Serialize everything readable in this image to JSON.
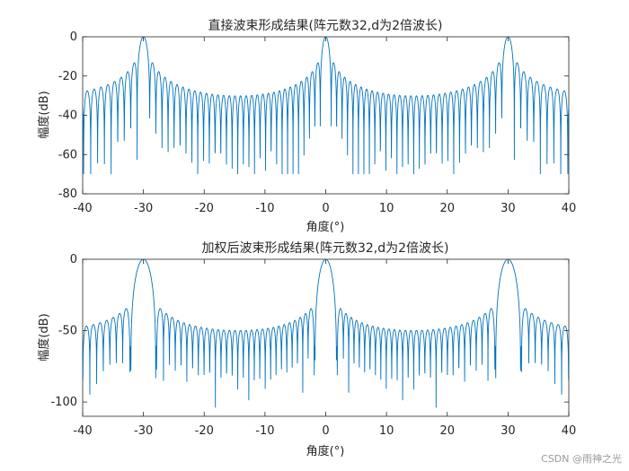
{
  "colors": {
    "line": "#0072BD",
    "axes": "#262626",
    "background": "#ffffff"
  },
  "watermark": "CSDN @雨神之光",
  "chart_data": [
    {
      "type": "line",
      "title": "直接波束形成结果(阵元数32,d为2倍波长)",
      "xlabel": "角度(°)",
      "ylabel": "幅度(dB)",
      "xlim": [
        -40,
        40
      ],
      "ylim": [
        -80,
        0
      ],
      "xticks": [
        -40,
        -30,
        -20,
        -10,
        0,
        10,
        20,
        30,
        40
      ],
      "yticks": [
        0,
        -20,
        -40,
        -60,
        -80
      ],
      "grid": false,
      "array_elements": 32,
      "spacing_wavelengths": 2,
      "weighting": "uniform",
      "main_lobes_deg": [
        -30,
        0,
        30
      ],
      "floor_db": -70,
      "series": [
        {
          "values_note": "",
          "color": "#0072BD"
        }
      ]
    },
    {
      "type": "line",
      "title": "加权后波束形成结果(阵元数32,d为2倍波长)",
      "xlabel": "角度(°)",
      "ylabel": "幅度(dB)",
      "xlim": [
        -40,
        40
      ],
      "ylim": [
        -110,
        0
      ],
      "xticks": [
        -40,
        -30,
        -20,
        -10,
        0,
        10,
        20,
        30,
        40
      ],
      "yticks": [
        0,
        -50,
        -100
      ],
      "grid": false,
      "array_elements": 32,
      "spacing_wavelengths": 2,
      "weighting": "tapered",
      "main_lobes_deg": [
        -30,
        0,
        30
      ],
      "sidelobe_level_db": -43,
      "floor_db": -108,
      "series": [
        {
          "values_note": "",
          "color": "#0072BD"
        }
      ]
    }
  ]
}
